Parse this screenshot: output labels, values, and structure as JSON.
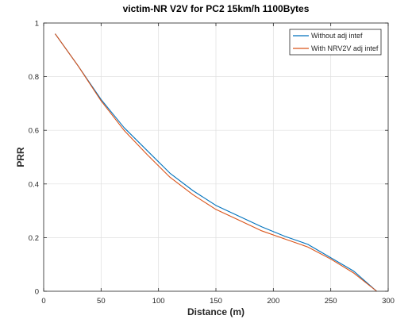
{
  "chart_data": {
    "type": "line",
    "title": "victim-NR V2V for PC2 15km/h 1100Bytes",
    "xlabel": "Distance (m)",
    "ylabel": "PRR",
    "xlim": [
      0,
      300
    ],
    "ylim": [
      0,
      1
    ],
    "xticks": [
      0,
      50,
      100,
      150,
      200,
      250,
      300
    ],
    "yticks": [
      0,
      0.2,
      0.4,
      0.6,
      0.8,
      1
    ],
    "xtick_labels": [
      "0",
      "50",
      "100",
      "150",
      "200",
      "250",
      "300"
    ],
    "ytick_labels": [
      "0",
      "0.2",
      "0.4",
      "0.6",
      "0.8",
      "1"
    ],
    "grid": true,
    "legend_position": "top-right",
    "x": [
      10,
      30,
      50,
      70,
      90,
      110,
      130,
      150,
      170,
      190,
      210,
      230,
      250,
      270,
      290
    ],
    "series": [
      {
        "name": "Without adj intef",
        "color": "#0072bd",
        "values": [
          0.96,
          0.84,
          0.715,
          0.61,
          0.525,
          0.44,
          0.375,
          0.32,
          0.28,
          0.24,
          0.205,
          0.175,
          0.125,
          0.075,
          0.0
        ]
      },
      {
        "name": "With NRV2V adj intef",
        "color": "#d95319",
        "values": [
          0.96,
          0.84,
          0.71,
          0.6,
          0.51,
          0.425,
          0.36,
          0.305,
          0.265,
          0.225,
          0.195,
          0.165,
          0.12,
          0.068,
          0.0
        ]
      }
    ]
  }
}
